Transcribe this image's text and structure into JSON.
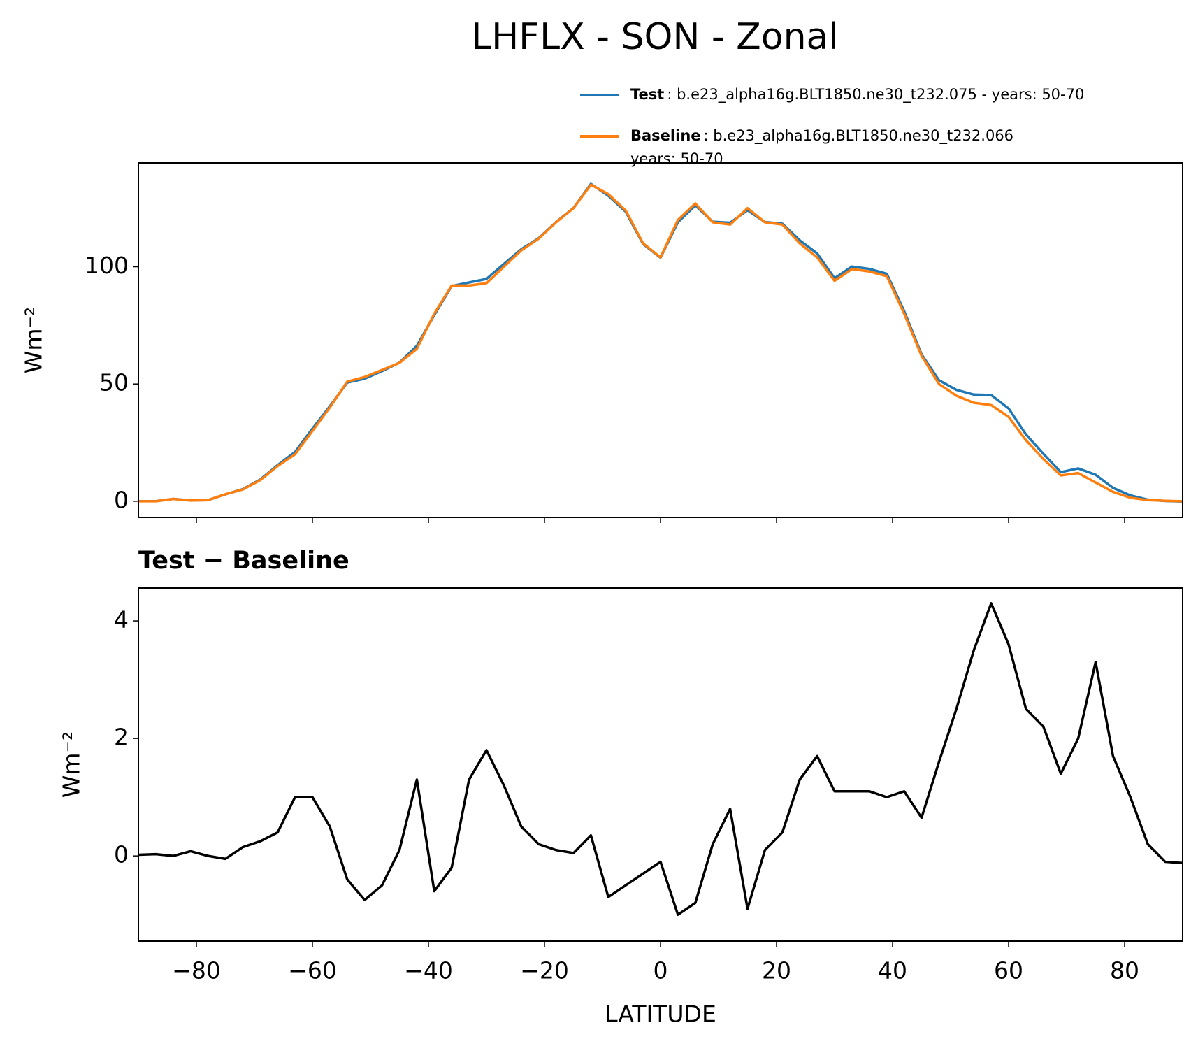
{
  "title": "LHFLX - SON - Zonal",
  "chart_data": [
    {
      "type": "line",
      "ylabel": "Wm⁻²",
      "xlim": [
        -90,
        90
      ],
      "ylim": [
        -6.9,
        144.3
      ],
      "yticks": [
        0,
        50,
        100
      ],
      "xticks": [
        {
          "value": -80,
          "label": "−80"
        },
        {
          "value": -60,
          "label": "−60"
        },
        {
          "value": -40,
          "label": "−40"
        },
        {
          "value": -20,
          "label": "−20"
        },
        0,
        20,
        40,
        60,
        80
      ],
      "xtick_labels": false,
      "legend": "upper right",
      "x": [
        -90,
        -87,
        -84,
        -81,
        -78,
        -75,
        -72,
        -69,
        -66,
        -63,
        -60,
        -57,
        -54,
        -51,
        -48,
        -45,
        -42,
        -39,
        -36,
        -33,
        -30,
        -27,
        -24,
        -21,
        -18,
        -15,
        -12,
        -9,
        -6,
        -3,
        0,
        3,
        6,
        9,
        12,
        15,
        18,
        21,
        24,
        27,
        30,
        33,
        36,
        39,
        42,
        45,
        48,
        51,
        54,
        57,
        60,
        63,
        66,
        69,
        72,
        75,
        78,
        81,
        84,
        87,
        90
      ],
      "series": [
        {
          "name": "Test",
          "description": [
            ": b.e23_alpha16g.BLT1850.ne30_t232.075 - years: 50-70"
          ],
          "color": "#1f77b4",
          "values": [
            0.02,
            0.03,
            1,
            0.38,
            0.5,
            2.95,
            5.15,
            9.25,
            15.4,
            21,
            31,
            40.5,
            50.6,
            52.25,
            55.5,
            59.1,
            66.3,
            79.4,
            91.8,
            93.3,
            94.8,
            101.2,
            107.5,
            112.2,
            119.1,
            125.05,
            135.35,
            130.3,
            123.5,
            109.7,
            103.9,
            119,
            126.2,
            119.2,
            118.8,
            124.1,
            119.1,
            118.4,
            111.3,
            105.7,
            95.1,
            100.1,
            99.1,
            97,
            81.1,
            62.65,
            51.6,
            47.5,
            45.5,
            45.3,
            39.6,
            28.5,
            20.2,
            12.4,
            14,
            11.3,
            5.7,
            2.5,
            0.7,
            0.1,
            -0.12
          ]
        },
        {
          "name": "Baseline",
          "description": [
            ": b.e23_alpha16g.BLT1850.ne30_t232.066",
            "years: 50-70"
          ],
          "color": "#ff7f0e",
          "values": [
            0,
            0,
            1,
            0.3,
            0.5,
            3,
            5,
            9,
            15,
            20,
            30,
            40,
            51,
            53,
            56,
            59,
            65,
            80,
            92,
            92,
            93,
            100,
            107,
            112,
            119,
            125,
            135,
            131,
            124,
            110,
            104,
            120,
            127,
            119,
            118,
            125,
            119,
            118,
            110,
            104,
            94,
            99,
            98,
            96,
            80,
            62,
            50,
            45,
            42,
            41,
            36,
            26,
            18,
            11,
            12,
            8,
            4,
            1.5,
            0.5,
            0.2,
            0
          ]
        }
      ]
    },
    {
      "type": "line",
      "title": "Test − Baseline",
      "ylabel": "Wm⁻²",
      "xlabel": "LATITUDE",
      "xlim": [
        -90,
        90
      ],
      "ylim": [
        -1.45,
        4.56
      ],
      "yticks": [
        0,
        2,
        4
      ],
      "xticks": [
        {
          "value": -80,
          "label": "−80"
        },
        {
          "value": -60,
          "label": "−60"
        },
        {
          "value": -40,
          "label": "−40"
        },
        {
          "value": -20,
          "label": "−20"
        },
        0,
        20,
        40,
        60,
        80
      ],
      "xtick_labels": true,
      "x": [
        -90,
        -87,
        -84,
        -81,
        -78,
        -75,
        -72,
        -69,
        -66,
        -63,
        -60,
        -57,
        -54,
        -51,
        -48,
        -45,
        -42,
        -39,
        -36,
        -33,
        -30,
        -27,
        -24,
        -21,
        -18,
        -15,
        -12,
        -9,
        -6,
        -3,
        0,
        3,
        6,
        9,
        12,
        15,
        18,
        21,
        24,
        27,
        30,
        33,
        36,
        39,
        42,
        45,
        48,
        51,
        54,
        57,
        60,
        63,
        66,
        69,
        72,
        75,
        78,
        81,
        84,
        87,
        90
      ],
      "series": [
        {
          "color": "#000000",
          "values": [
            0.02,
            0.03,
            0,
            0.08,
            0,
            -0.05,
            0.15,
            0.25,
            0.4,
            1.0,
            1.0,
            0.5,
            -0.4,
            -0.75,
            -0.5,
            0.1,
            1.3,
            -0.6,
            -0.2,
            1.3,
            1.8,
            1.2,
            0.5,
            0.2,
            0.1,
            0.05,
            0.35,
            -0.7,
            -0.5,
            -0.3,
            -0.1,
            -1.0,
            -0.8,
            0.2,
            0.8,
            -0.9,
            0.1,
            0.4,
            1.3,
            1.7,
            1.1,
            1.1,
            1.1,
            1.0,
            1.1,
            0.65,
            1.6,
            2.5,
            3.5,
            4.3,
            3.6,
            2.5,
            2.2,
            1.4,
            2.0,
            3.3,
            1.7,
            1.0,
            0.2,
            -0.1,
            -0.12
          ]
        }
      ]
    }
  ]
}
